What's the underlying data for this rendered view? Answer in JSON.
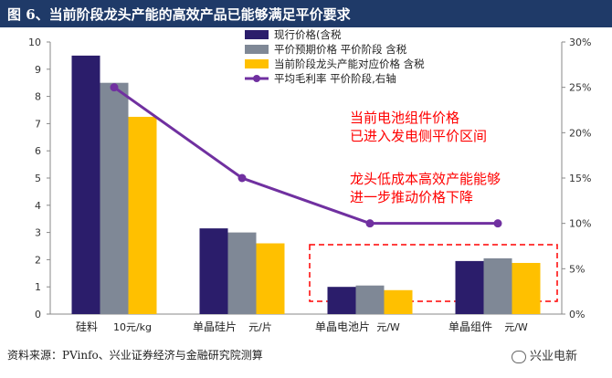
{
  "title": "图 6、当前阶段龙头产能的高效产品已能够满足平价要求",
  "source": "资料来源：PVinfo、兴业证券经济与金融研究院测算",
  "watermark": "兴业电新",
  "colors": {
    "bar1": "#2b1d6b",
    "bar2": "#7f8896",
    "bar3": "#ffc000",
    "line": "#7030a0",
    "annotation": "#ff0000",
    "title_bg": "#1f3a68"
  },
  "chart_data": {
    "type": "bar",
    "categories": [
      "硅料",
      "单晶硅片",
      "单晶电池片",
      "单晶组件"
    ],
    "units": [
      "10元/kg",
      "元/片",
      "元/W",
      "元/W"
    ],
    "series": [
      {
        "name": "现行价格(含税",
        "values": [
          9.5,
          3.15,
          1.0,
          1.95
        ]
      },
      {
        "name": "平价预期价格   平价阶段   含税",
        "values": [
          8.5,
          3.0,
          1.05,
          2.05
        ]
      },
      {
        "name": "当前阶段龙头产能对应价格   含税",
        "values": [
          7.25,
          2.6,
          0.88,
          1.88
        ]
      }
    ],
    "line_series": {
      "name": "平均毛利率   平价阶段,右轴",
      "values": [
        25,
        15,
        10,
        10
      ],
      "axis": "right"
    },
    "ylim": [
      0,
      10
    ],
    "yticks": [
      0,
      1,
      2,
      3,
      4,
      5,
      6,
      7,
      8,
      9,
      10
    ],
    "y2lim": [
      0,
      30
    ],
    "y2ticks": [
      "0%",
      "5%",
      "10%",
      "15%",
      "20%",
      "25%",
      "30%"
    ],
    "annotations": [
      {
        "lines": [
          "当前电池组件价格",
          "已进入发电侧平价区间"
        ]
      },
      {
        "lines": [
          "龙头低成本高效产能能够",
          "进一步推动价格下降"
        ]
      }
    ],
    "highlight_box": "dashed red box around 单晶电池片 and 单晶组件",
    "grid": false,
    "legend_position": "top-center"
  }
}
